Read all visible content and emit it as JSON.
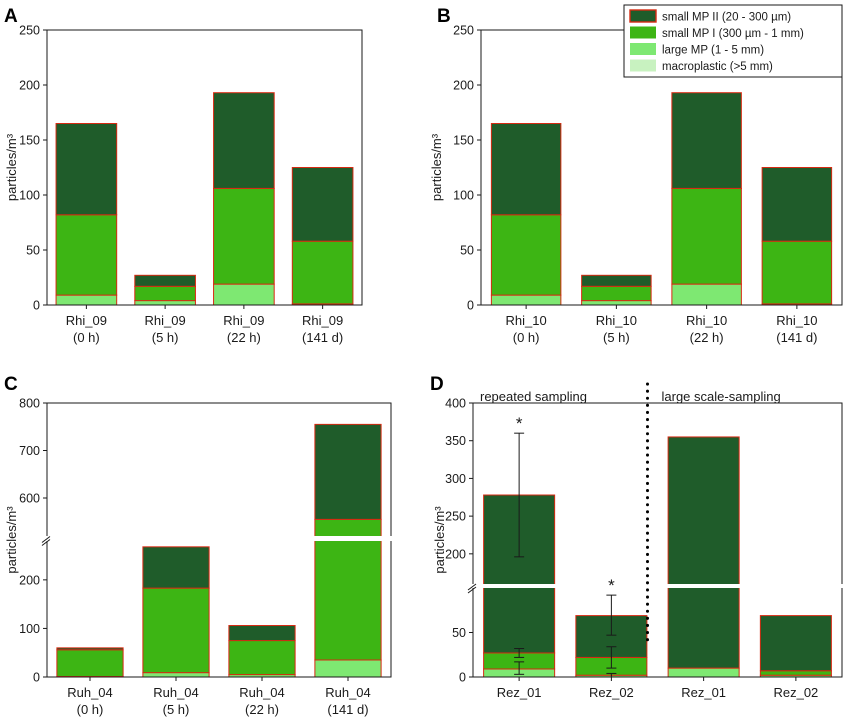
{
  "chart_data": [
    {
      "panel": "A",
      "type": "bar",
      "stacked": true,
      "ylabel": "particles/m³",
      "ylim": [
        0,
        250
      ],
      "yticks": [
        0,
        50,
        100,
        150,
        200,
        250
      ],
      "categories": [
        "Rhi_09\n(0 h)",
        "Rhi_09\n(5 h)",
        "Rhi_09\n(22 h)",
        "Rhi_09\n(141 d)"
      ],
      "series": [
        {
          "name": "macroplastic (>5 mm)",
          "values": [
            0,
            0,
            0,
            0
          ]
        },
        {
          "name": "large MP (1 - 5 mm)",
          "values": [
            9,
            4,
            19,
            1
          ]
        },
        {
          "name": "small MP I (300 µm - 1 mm)",
          "values": [
            73,
            13,
            87,
            57
          ]
        },
        {
          "name": "small MP II (20 - 300 µm)",
          "values": [
            83,
            10,
            87,
            67
          ]
        }
      ]
    },
    {
      "panel": "B",
      "type": "bar",
      "stacked": true,
      "ylabel": "particles/m³",
      "ylim": [
        0,
        250
      ],
      "yticks": [
        0,
        50,
        100,
        150,
        200,
        250
      ],
      "categories": [
        "Rhi_10\n(0 h)",
        "Rhi_10\n(5 h)",
        "Rhi_10\n(22 h)",
        "Rhi_10\n(141 d)"
      ],
      "series": [
        {
          "name": "macroplastic (>5 mm)",
          "values": [
            0,
            0,
            0,
            0
          ]
        },
        {
          "name": "large MP (1 - 5 mm)",
          "values": [
            9,
            4,
            19,
            1
          ]
        },
        {
          "name": "small MP I (300 µm - 1 mm)",
          "values": [
            73,
            13,
            87,
            57
          ]
        },
        {
          "name": "small MP II (20 - 300 µm)",
          "values": [
            83,
            10,
            87,
            67
          ]
        }
      ]
    },
    {
      "panel": "C",
      "type": "bar",
      "stacked": true,
      "broken_axis": true,
      "ylabel": "particles/m³",
      "segments": [
        {
          "range": [
            0,
            280
          ],
          "ticks": [
            0,
            100,
            200
          ]
        },
        {
          "range": [
            520,
            800
          ],
          "ticks": [
            600,
            700,
            800
          ]
        }
      ],
      "categories": [
        "Ruh_04\n(0 h)",
        "Ruh_04\n(5 h)",
        "Ruh_04\n(22 h)",
        "Ruh_04\n(141 d)"
      ],
      "series": [
        {
          "name": "macroplastic (>5 mm)",
          "values": [
            0,
            0,
            0,
            0
          ]
        },
        {
          "name": "large MP (1 - 5 mm)",
          "values": [
            1,
            9,
            5,
            35
          ]
        },
        {
          "name": "small MP I (300 µm - 1 mm)",
          "values": [
            55,
            174,
            70,
            520
          ]
        },
        {
          "name": "small MP II (20 - 300 µm)",
          "values": [
            4,
            85,
            31,
            200
          ]
        }
      ]
    },
    {
      "panel": "D",
      "type": "bar",
      "stacked": true,
      "broken_axis": true,
      "ylabel": "particles/m³",
      "segments": [
        {
          "range": [
            0,
            100
          ],
          "ticks": [
            0,
            50
          ]
        },
        {
          "range": [
            160,
            400
          ],
          "ticks": [
            200,
            250,
            300,
            350,
            400
          ]
        }
      ],
      "categories": [
        "Rez_01",
        "Rez_02",
        "Rez_01",
        "Rez_02"
      ],
      "groups": [
        "repeated sampling",
        "large scale-sampling"
      ],
      "series": [
        {
          "name": "macroplastic (>5 mm)",
          "values": [
            0,
            0,
            0,
            0
          ]
        },
        {
          "name": "large MP (1 - 5 mm)",
          "values": [
            9,
            2,
            10,
            2
          ]
        },
        {
          "name": "small MP I (300 µm - 1 mm)",
          "values": [
            18,
            20,
            0,
            5
          ]
        },
        {
          "name": "small MP II (20 - 300 µm)",
          "values": [
            251,
            47,
            345,
            62
          ]
        }
      ],
      "error_bars": [
        {
          "category_index": 0,
          "value": 9,
          "low": 3,
          "high": 17
        },
        {
          "category_index": 0,
          "value": 27,
          "low": 22,
          "high": 32
        },
        {
          "category_index": 0,
          "value": 278,
          "low": 196,
          "high": 360
        },
        {
          "category_index": 1,
          "value": 2,
          "low": 0,
          "high": 4
        },
        {
          "category_index": 1,
          "value": 22,
          "low": 10,
          "high": 34
        },
        {
          "category_index": 1,
          "value": 69,
          "low": 47,
          "high": 92
        }
      ],
      "significance": [
        {
          "category_index": 0,
          "label": "*"
        },
        {
          "category_index": 1,
          "label": "*"
        }
      ]
    }
  ],
  "legend": [
    {
      "label": "small MP II (20 - 300 µm)",
      "color": "#1f5c2a"
    },
    {
      "label": "small MP I (300 µm - 1 mm)",
      "color": "#3db514"
    },
    {
      "label": "large MP (1 - 5 mm)",
      "color": "#7ee872"
    },
    {
      "label": "macroplastic (>5 mm)",
      "color": "#c8f2c0"
    }
  ],
  "colors": {
    "small_mp_ii": "#1f5c2a",
    "small_mp_i": "#3db514",
    "large_mp": "#7ee872",
    "macroplastic": "#c8f2c0",
    "outline": "#d62a12"
  }
}
